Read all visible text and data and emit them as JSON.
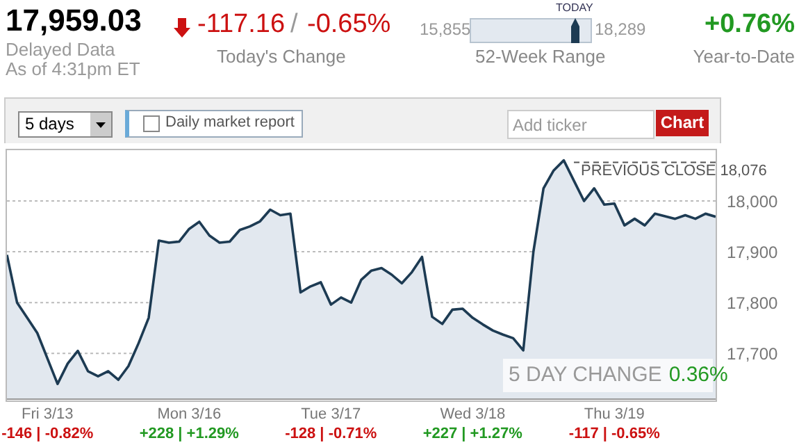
{
  "chart_data": {
    "type": "area",
    "title": "17,959.03",
    "annotations": [
      "Delayed Data",
      "As of 4:31pm ET",
      "-117.16",
      "/",
      "-0.65%",
      "Today's Change",
      "15,855",
      "18,289",
      "TODAY",
      "52-Week Range",
      "+0.76%",
      "Year-to-Date",
      "5 days",
      "Daily market report",
      "Add ticker",
      "Chart",
      "5 DAY CHANGE",
      "0.36%",
      "-146 | -0.82%",
      "+228 | +1.29%",
      "-128 | -0.71%",
      "+227 | +1.27%",
      "-117 | -0.65%"
    ],
    "categories": [
      null,
      null,
      null,
      null,
      "Fri 3/13",
      null,
      null,
      null,
      null,
      null,
      null,
      null,
      null,
      null,
      null,
      null,
      null,
      null,
      "Mon 3/16",
      null,
      null,
      null,
      null,
      null,
      null,
      null,
      null,
      null,
      null,
      null,
      null,
      null,
      "Tue 3/17",
      null,
      null,
      null,
      null,
      null,
      null,
      null,
      null,
      null,
      null,
      null,
      null,
      null,
      "Wed 3/18",
      null,
      null,
      null,
      null,
      null,
      null,
      null,
      null,
      null,
      null,
      null,
      null,
      null,
      "Thu 3/19",
      null,
      null,
      null,
      null,
      null,
      null,
      null,
      null,
      null,
      null
    ],
    "series": [
      {
        "color": "#1d3b53",
        "values": [
          17894,
          17800,
          17770,
          17740,
          17690,
          17640,
          17680,
          17705,
          17665,
          17655,
          17665,
          17648,
          17675,
          17720,
          17770,
          17922,
          17918,
          17920,
          17945,
          17959,
          17932,
          17918,
          17920,
          17943,
          17950,
          17960,
          17983,
          17972,
          17975,
          17820,
          17832,
          17840,
          17796,
          17810,
          17800,
          17845,
          17863,
          17868,
          17855,
          17838,
          17860,
          17890,
          17772,
          17758,
          17786,
          17788,
          17770,
          17757,
          17745,
          17737,
          17730,
          17706,
          17900,
          18025,
          18060,
          18080,
          18040,
          18000,
          18025,
          17993,
          17995,
          17952,
          17965,
          17952,
          17975,
          17970,
          17965,
          17972,
          17965,
          17975,
          17969
        ]
      }
    ],
    "ylim": [
      17610,
      18100
    ],
    "yticks": [
      {
        "value": 17700,
        "label": "17,700"
      },
      {
        "value": 17800,
        "label": "17,800"
      },
      {
        "value": 17900,
        "label": "17,900"
      },
      {
        "value": 18000,
        "label": "18,000"
      }
    ],
    "grid": "y",
    "ref_lines": [
      {
        "axis": "y",
        "value": 18076,
        "label": "PREVIOUS CLOSE 18,076",
        "color": "#555555",
        "line_style": "dashed"
      }
    ]
  }
}
